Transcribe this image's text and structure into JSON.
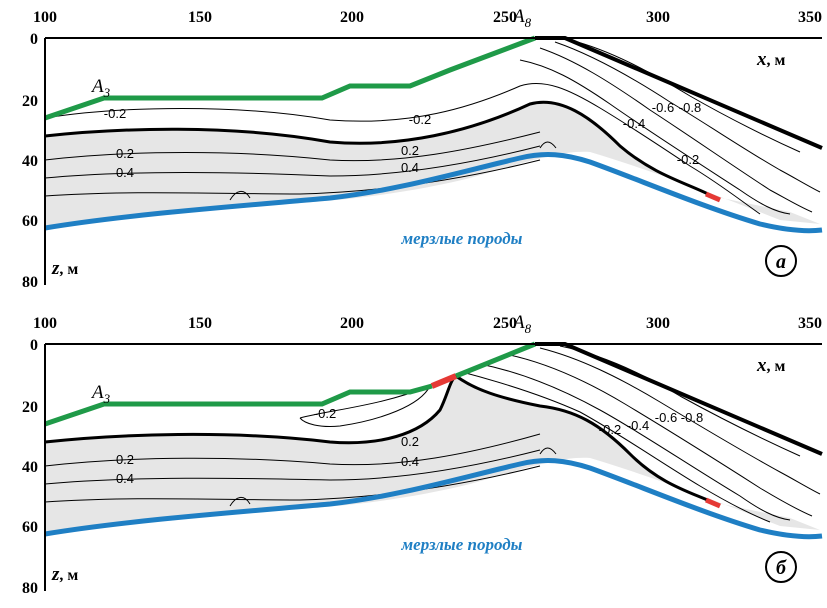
{
  "figure": {
    "panels": [
      {
        "id": "a",
        "mark": "а",
        "x_ticks": [
          "100",
          "150",
          "200",
          "250",
          "300",
          "350"
        ],
        "y_ticks": [
          "0",
          "20",
          "40",
          "60",
          "80"
        ],
        "x_axis_label": "x",
        "x_axis_unit": ", м",
        "z_axis_label": "z",
        "z_axis_unit": ", м",
        "point_a3": {
          "letter": "A",
          "sub": "3"
        },
        "point_a8": {
          "letter": "A",
          "sub": "8"
        },
        "region_label": "мерзлые породы",
        "contour_labels": {
          "m02_left": "-0.2",
          "m02_mid": "-0.2",
          "m02_right": "-0.2",
          "m04": "-0.4",
          "m06": "-0.6",
          "m08": "-0.8",
          "p02_left": "0.2",
          "p02_mid": "0.2",
          "p04_left": "0.4",
          "p04_mid": "0.4"
        }
      },
      {
        "id": "b",
        "mark": "б",
        "x_ticks": [
          "100",
          "150",
          "200",
          "250",
          "300",
          "350"
        ],
        "y_ticks": [
          "0",
          "20",
          "40",
          "60",
          "80"
        ],
        "x_axis_label": "x",
        "x_axis_unit": ", м",
        "z_axis_label": "z",
        "z_axis_unit": ", м",
        "point_a3": {
          "letter": "A",
          "sub": "3"
        },
        "point_a8": {
          "letter": "A",
          "sub": "8"
        },
        "region_label": "мерзлые породы",
        "contour_labels": {
          "m02_left": "-0.2",
          "m02_right": "-0.2",
          "m04": "-0.4",
          "m06": "-0.6",
          "m08": "-0.8",
          "p02_left": "0.2",
          "p02_mid": "0.2",
          "p04_left": "0.4",
          "p04_mid": "0.4"
        }
      }
    ],
    "colors": {
      "ground_green": "#1f9a48",
      "permafrost_blue": "#1f7fc4",
      "breach_red": "#e53935",
      "thawed_fill": "#e6e6e6",
      "slope_black": "#000000",
      "region_text": "#1f7fc4"
    }
  }
}
